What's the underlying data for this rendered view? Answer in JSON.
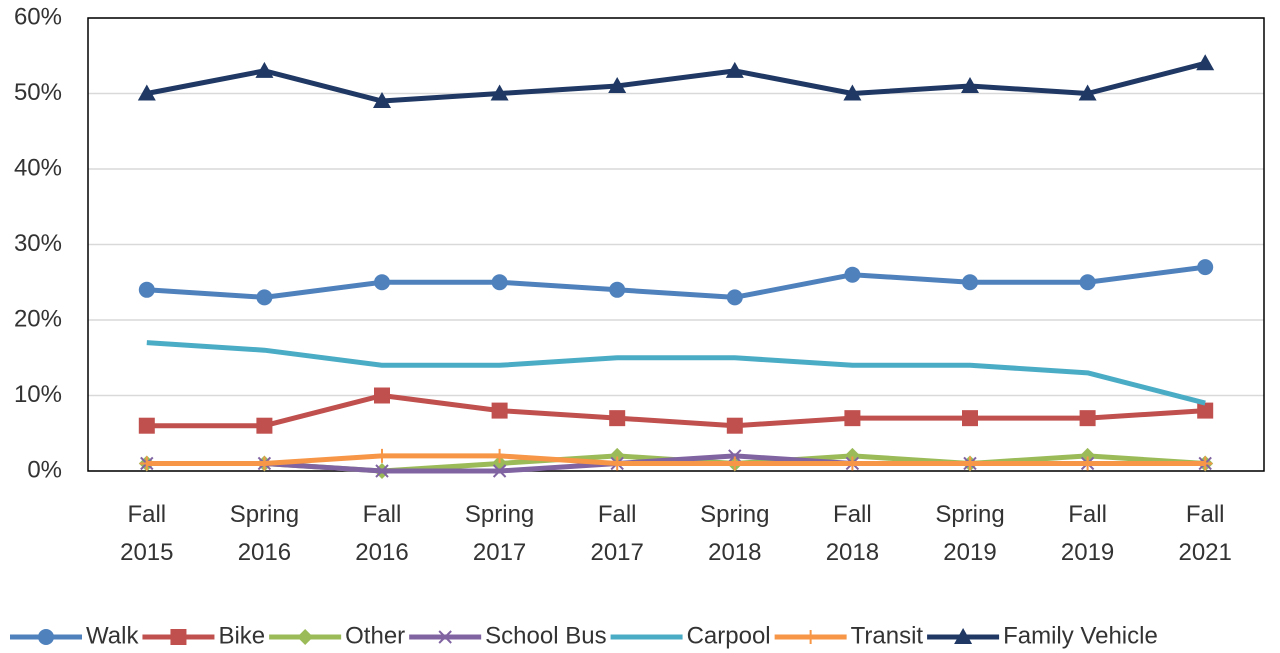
{
  "chart_data": {
    "type": "line",
    "categories": [
      "Fall 2015",
      "Spring 2016",
      "Fall 2016",
      "Spring 2017",
      "Fall 2017",
      "Spring 2018",
      "Fall 2018",
      "Spring 2019",
      "Fall 2019",
      "Fall 2021"
    ],
    "series": [
      {
        "name": "Walk",
        "color": "#4f81bd",
        "marker": "circle",
        "values": [
          24,
          23,
          25,
          25,
          24,
          23,
          26,
          25,
          25,
          27
        ]
      },
      {
        "name": "Bike",
        "color": "#c0504d",
        "marker": "square",
        "values": [
          6,
          6,
          10,
          8,
          7,
          6,
          7,
          7,
          7,
          8
        ]
      },
      {
        "name": "Other",
        "color": "#9bbb59",
        "marker": "diamond",
        "values": [
          1,
          1,
          0,
          1,
          2,
          1,
          2,
          1,
          2,
          1
        ]
      },
      {
        "name": "School Bus",
        "color": "#8064a2",
        "marker": "x",
        "values": [
          1,
          1,
          0,
          0,
          1,
          2,
          1,
          1,
          1,
          1
        ]
      },
      {
        "name": "Carpool",
        "color": "#4bacc6",
        "marker": "none",
        "values": [
          17,
          16,
          14,
          14,
          15,
          15,
          14,
          14,
          13,
          9
        ]
      },
      {
        "name": "Transit",
        "color": "#f79646",
        "marker": "plus",
        "values": [
          1,
          1,
          2,
          2,
          1,
          1,
          1,
          1,
          1,
          1
        ]
      },
      {
        "name": "Family Vehicle",
        "color": "#1f3864",
        "marker": "triangle",
        "values": [
          50,
          53,
          49,
          50,
          51,
          53,
          50,
          51,
          50,
          54
        ]
      }
    ],
    "ylim": [
      0,
      60
    ],
    "yticks": [
      {
        "value": 0,
        "label": "0%"
      },
      {
        "value": 10,
        "label": "10%"
      },
      {
        "value": 20,
        "label": "20%"
      },
      {
        "value": 30,
        "label": "30%"
      },
      {
        "value": 40,
        "label": "40%"
      },
      {
        "value": 50,
        "label": "50%"
      },
      {
        "value": 60,
        "label": "60%"
      }
    ],
    "grid": true,
    "legend": "bottom"
  }
}
